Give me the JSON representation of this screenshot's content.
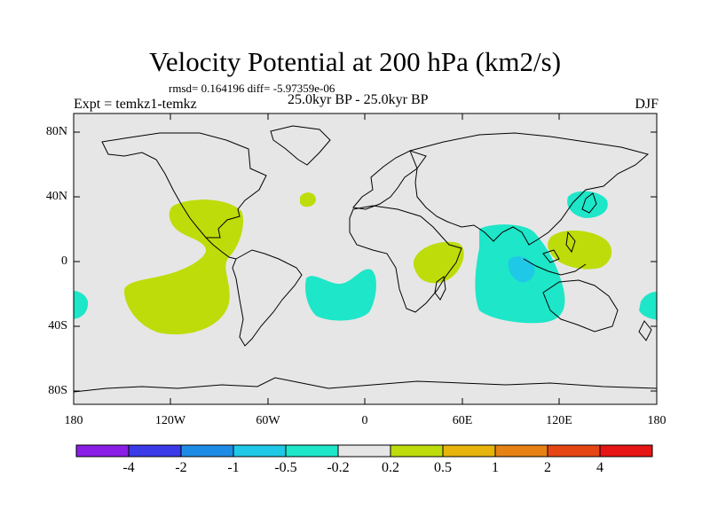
{
  "header": {
    "title": "Velocity Potential at 200 hPa (km2/s)",
    "stats": "rmsd= 0.164196 diff= -5.97359e-06",
    "experiment": "Expt = temkz1-temkz",
    "period": "25.0kyr BP - 25.0kyr BP",
    "season": "DJF"
  },
  "map": {
    "projection": "cylindrical equidistant",
    "lon_range": [
      -180,
      180
    ],
    "lat_range": [
      -90,
      90
    ],
    "lat_ticks": [
      {
        "value": 80,
        "label": "80N"
      },
      {
        "value": 40,
        "label": "40N"
      },
      {
        "value": 0,
        "label": "0"
      },
      {
        "value": -40,
        "label": "40S"
      },
      {
        "value": -80,
        "label": "80S"
      }
    ],
    "lon_ticks": [
      {
        "value": -180,
        "label": "180"
      },
      {
        "value": -120,
        "label": "120W"
      },
      {
        "value": -60,
        "label": "60W"
      },
      {
        "value": 0,
        "label": "0"
      },
      {
        "value": 60,
        "label": "60E"
      },
      {
        "value": 120,
        "label": "120E"
      },
      {
        "value": 180,
        "label": "180"
      }
    ],
    "background_color": "#e6e6e6"
  },
  "colorbar": {
    "colors": [
      "#8a1ee6",
      "#3a3ae8",
      "#1e8ce6",
      "#1ec8e6",
      "#1ee6c8",
      "#e6e6e6",
      "#bedc0a",
      "#e6b40a",
      "#e68214",
      "#e64614",
      "#e61414"
    ],
    "labels": [
      "-4",
      "-2",
      "-1",
      "-0.5",
      "-0.2",
      "0.2",
      "0.5",
      "1",
      "2",
      "4"
    ]
  },
  "regions": [
    {
      "name": "positive",
      "value_range": "0.2 to 0.5",
      "color": "#bedc0a"
    },
    {
      "name": "negative",
      "value_range": "-0.5 to -0.2",
      "color": "#1ee6c8"
    },
    {
      "name": "strong-negative",
      "value_range": "-1 to -0.5",
      "color": "#1ec8e6"
    }
  ]
}
